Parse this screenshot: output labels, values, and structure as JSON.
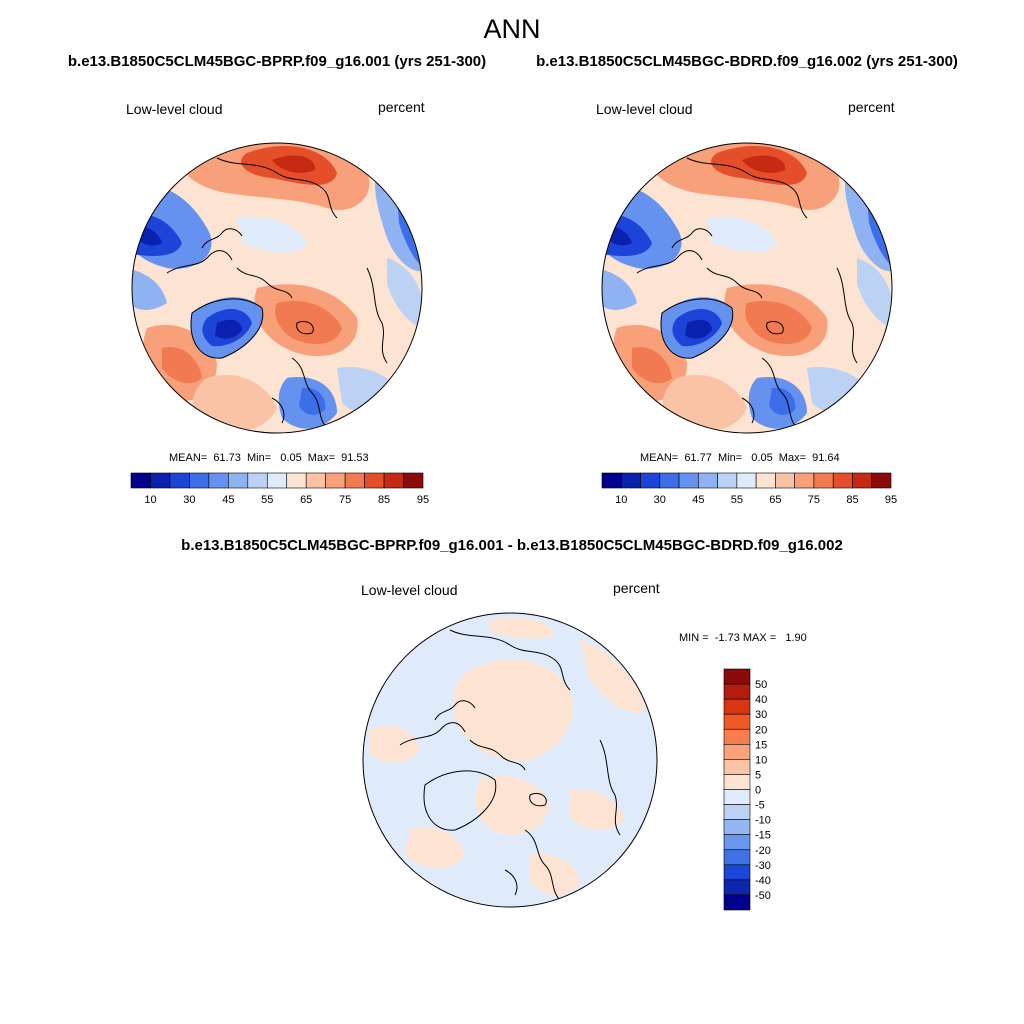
{
  "title": "ANN",
  "panels": {
    "case1": {
      "title": "b.e13.B1850C5CLM45BGC-BPRP.f09_g16.001 (yrs 251-300)",
      "variable": "Low-level cloud",
      "units": "percent",
      "stats": {
        "mean": "61.73",
        "min": "0.05",
        "max": "91.53"
      },
      "stats_text": "MEAN=  61.73  Min=   0.05  Max=  91.53"
    },
    "case2": {
      "title": "b.e13.B1850C5CLM45BGC-BDRD.f09_g16.002 (yrs 251-300)",
      "variable": "Low-level cloud",
      "units": "percent",
      "stats": {
        "mean": "61.77",
        "min": "0.05",
        "max": "91.64"
      },
      "stats_text": "MEAN=  61.77  Min=   0.05  Max=  91.64"
    },
    "diff": {
      "title": "b.e13.B1850C5CLM45BGC-BPRP.f09_g16.001 - b.e13.B1850C5CLM45BGC-BDRD.f09_g16.002",
      "variable": "Low-level cloud",
      "units": "percent",
      "stats": {
        "min": "-1.73",
        "max": "1.90"
      },
      "stats_text": "MIN =  -1.73 MAX =   1.90"
    }
  },
  "colorbars": {
    "main": {
      "labels": [
        "10",
        "30",
        "45",
        "55",
        "65",
        "75",
        "85",
        "95"
      ],
      "colors": [
        "#00008c",
        "#0a21b0",
        "#1d44d8",
        "#3c6ee8",
        "#6492ee",
        "#8fb2f2",
        "#bcd2f5",
        "#dfeafb",
        "#fde3d1",
        "#fbc3a6",
        "#f7a07a",
        "#f27a50",
        "#e44e28",
        "#c72a12",
        "#8b0a0a"
      ]
    },
    "diff": {
      "labels": [
        "50",
        "40",
        "30",
        "20",
        "15",
        "10",
        "5",
        "0",
        "-5",
        "-10",
        "-15",
        "-20",
        "-30",
        "-40",
        "-50"
      ],
      "colors": [
        "#8b0a0a",
        "#b51c0d",
        "#d83512",
        "#ef5a24",
        "#f77d4e",
        "#f9a27c",
        "#fbc4a6",
        "#fde4d2",
        "#dfeafb",
        "#bcd2f5",
        "#94b6f2",
        "#6b96ee",
        "#3f70e6",
        "#1b46d6",
        "#0c27ad",
        "#00008c"
      ]
    }
  }
}
